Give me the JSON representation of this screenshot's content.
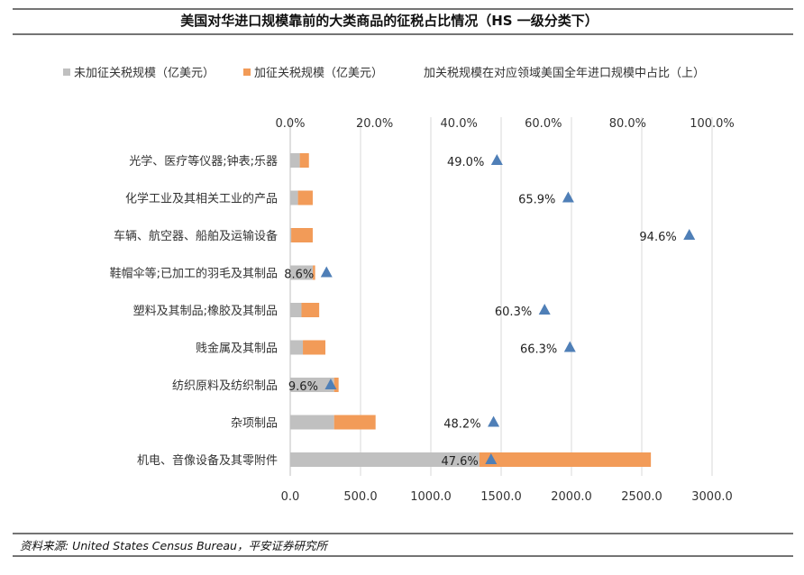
{
  "chart_data": {
    "type": "bar",
    "title": "美国对华进口规模靠前的大类商品的征税占比情况（HS 一级分类下）",
    "orientation": "horizontal",
    "stacked": true,
    "categories": [
      "光学、医疗等仪器;钟表;乐器",
      "化学工业及其相关工业的产品",
      "车辆、航空器、船舶及运输设备",
      "鞋帽伞等;已加工的羽毛及其制品",
      "塑料及其制品;橡胶及其制品",
      "贱金属及其制品",
      "纺织原料及纺织制品",
      "杂项制品",
      "机电、音像设备及其零附件"
    ],
    "series": [
      {
        "name": "未加征关税规模（亿美元）",
        "color": "#c0c0c0",
        "axis": "bottom",
        "values": [
          68,
          55,
          7,
          161,
          80,
          90,
          312,
          312,
          1345
        ]
      },
      {
        "name": "加征关税规模（亿美元）",
        "color": "#f29b58",
        "axis": "bottom",
        "values": [
          65,
          105,
          153,
          16,
          126,
          160,
          32,
          295,
          1220
        ]
      },
      {
        "name": "加关税规模在对应领域美国全年进口规模中占比（上）",
        "color": "#4f7fb7",
        "axis": "top",
        "marker": "triangle",
        "values": [
          49.0,
          65.9,
          94.6,
          8.6,
          60.3,
          66.3,
          9.6,
          48.2,
          47.6
        ],
        "labels": [
          "49.0%",
          "65.9%",
          "94.6%",
          "8.6%",
          "60.3%",
          "66.3%",
          "9.6%",
          "48.2%",
          "47.6%"
        ]
      }
    ],
    "bottom_axis": {
      "range": [
        0,
        3000
      ],
      "ticks": [
        0,
        500,
        1000,
        1500,
        2000,
        2500,
        3000
      ],
      "tick_labels": [
        "0.0",
        "500.0",
        "1000.0",
        "1500.0",
        "2000.0",
        "2500.0",
        "3000.0"
      ]
    },
    "top_axis": {
      "range": [
        0,
        100
      ],
      "ticks": [
        0,
        20,
        40,
        60,
        80,
        100
      ],
      "tick_labels": [
        "0.0%",
        "20.0%",
        "40.0%",
        "60.0%",
        "80.0%",
        "100.0%"
      ]
    },
    "grid": true,
    "legend_position": "top",
    "source": "资料来源: United States Census Bureau，平安证券研究所"
  }
}
